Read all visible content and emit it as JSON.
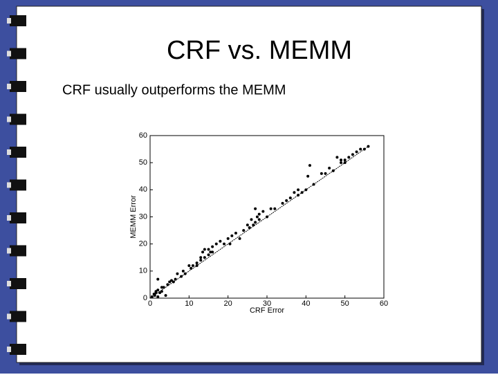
{
  "slide": {
    "title": "CRF vs. MEMM",
    "bullet": "CRF usually outperforms the MEMM"
  },
  "chart_data": {
    "type": "scatter",
    "x_label": "CRF Error",
    "y_label": "MEMM Error",
    "x": [
      0.5,
      1,
      1.2,
      1.5,
      2,
      2,
      2.5,
      3,
      3,
      3.5,
      4,
      4.5,
      5,
      5.5,
      6,
      6.5,
      7,
      8,
      8.5,
      9,
      10,
      10.5,
      11,
      12,
      12,
      13,
      13,
      13.5,
      14,
      14,
      15,
      15,
      16,
      16,
      17,
      18,
      19,
      20,
      20.5,
      21,
      22,
      23,
      24,
      25,
      25.5,
      26,
      26.5,
      27,
      27,
      28,
      28,
      29,
      30,
      31,
      32,
      34,
      35,
      36,
      37,
      38,
      38,
      39,
      40,
      40.5,
      41,
      42,
      44,
      45,
      46,
      47,
      48,
      49,
      49,
      50,
      50,
      51,
      52,
      53,
      54,
      55,
      56,
      2,
      1.5,
      15.5,
      27.5
    ],
    "y": [
      0.5,
      1.5,
      1,
      2,
      3,
      7,
      2,
      4,
      2.5,
      4,
      1,
      5,
      6,
      6.5,
      6,
      7,
      9,
      8,
      10,
      9,
      12,
      11,
      12,
      13,
      12,
      14,
      15,
      17,
      15,
      18,
      16,
      18,
      19,
      17,
      20,
      21,
      20,
      22,
      20,
      23,
      24,
      22,
      25,
      27,
      26,
      29,
      27,
      28,
      33,
      29,
      31,
      32,
      30,
      33,
      33,
      35,
      36,
      37,
      39,
      38,
      40,
      39,
      40,
      45,
      49,
      42,
      46,
      46,
      48,
      47,
      52,
      51,
      50,
      50,
      51,
      52,
      53,
      54,
      55,
      55,
      56,
      0.5,
      2.5,
      17,
      30
    ],
    "color": "#000000",
    "reference_line": {
      "x": [
        0,
        56
      ],
      "y": [
        0,
        56
      ]
    },
    "xlim": [
      0,
      60
    ],
    "ylim": [
      0,
      60
    ],
    "xticks": [
      0,
      10,
      20,
      30,
      40,
      50,
      60
    ],
    "yticks": [
      0,
      10,
      20,
      30,
      40,
      50,
      60
    ]
  }
}
